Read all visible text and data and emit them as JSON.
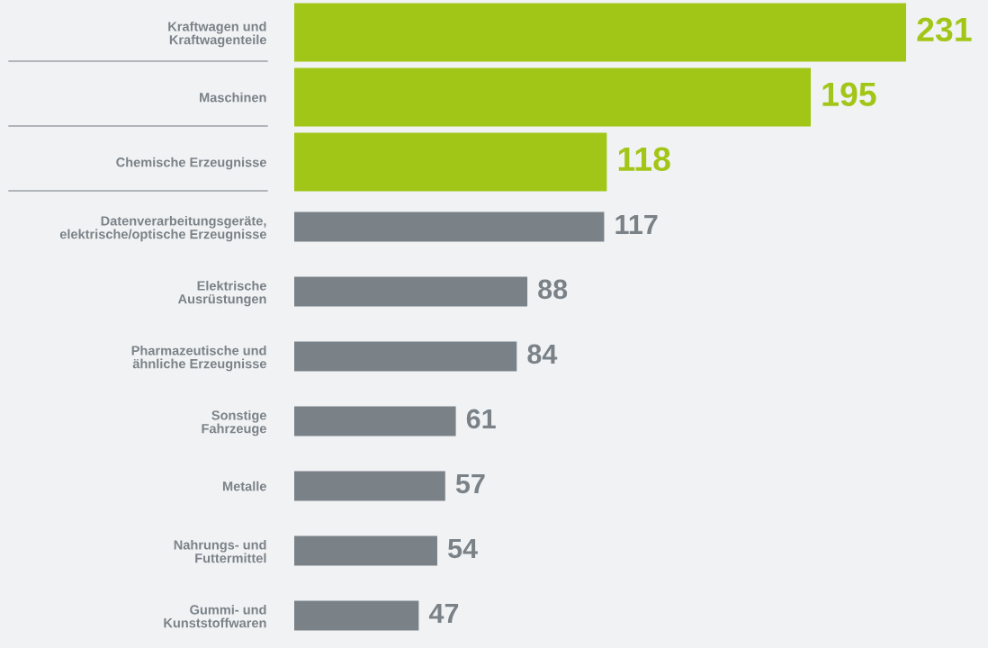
{
  "chart_data": {
    "type": "bar",
    "orientation": "horizontal",
    "data_labels": true,
    "categories": [
      "Kraftwagen und\nKraftwagenteile",
      "Maschinen",
      "Chemische Erzeugnisse",
      "Datenverarbeitungsgeräte,\nelektrische/optische Erzeugnisse",
      "Elektrische\nAusrüstungen",
      "Pharmazeutische und\nähnliche Erzeugnisse",
      "Sonstige\nFahrzeuge",
      "Metalle",
      "Nahrungs- und\nFuttermittel",
      "Gummi- und\nKunststoffwaren"
    ],
    "values": [
      231,
      195,
      118,
      117,
      88,
      84,
      61,
      57,
      54,
      47
    ],
    "colors": [
      "#a2c617",
      "#a2c617",
      "#a2c617",
      "#7a8288",
      "#7a8288",
      "#7a8288",
      "#7a8288",
      "#7a8288",
      "#7a8288",
      "#7a8288"
    ]
  }
}
